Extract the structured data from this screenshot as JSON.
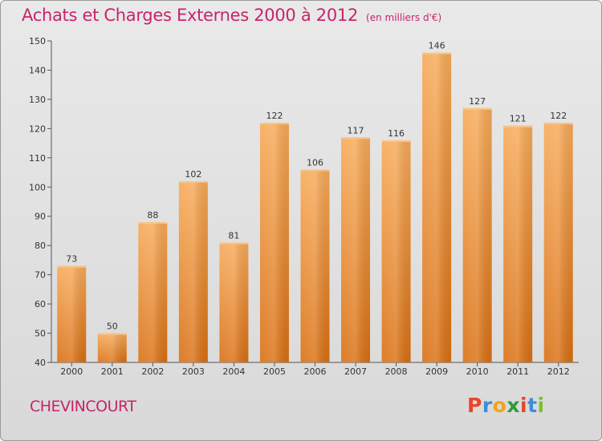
{
  "title": "Achats et Charges Externes 2000 à 2012",
  "subtitle": "(en milliers d'€)",
  "commune": "CHEVINCOURT",
  "logo": {
    "letters": [
      "P",
      "r",
      "o",
      "x",
      "i",
      "t",
      "i"
    ],
    "colors": [
      "#e8452a",
      "#3a8fd8",
      "#f4a11c",
      "#2f9a3a",
      "#e8452a",
      "#3a8fd8",
      "#7cbf2a"
    ]
  },
  "colors": {
    "bar": "#f08a2c",
    "bar_light": "#f6ab5e",
    "title": "#c8246a"
  },
  "chart_data": {
    "type": "bar",
    "categories": [
      "2000",
      "2001",
      "2002",
      "2003",
      "2004",
      "2005",
      "2006",
      "2007",
      "2008",
      "2009",
      "2010",
      "2011",
      "2012"
    ],
    "values": [
      73,
      50,
      88,
      102,
      81,
      122,
      106,
      117,
      116,
      146,
      127,
      121,
      122
    ],
    "ylim": [
      40,
      150
    ],
    "yticks": [
      40,
      50,
      60,
      70,
      80,
      90,
      100,
      110,
      120,
      130,
      140,
      150
    ],
    "grid": false
  }
}
